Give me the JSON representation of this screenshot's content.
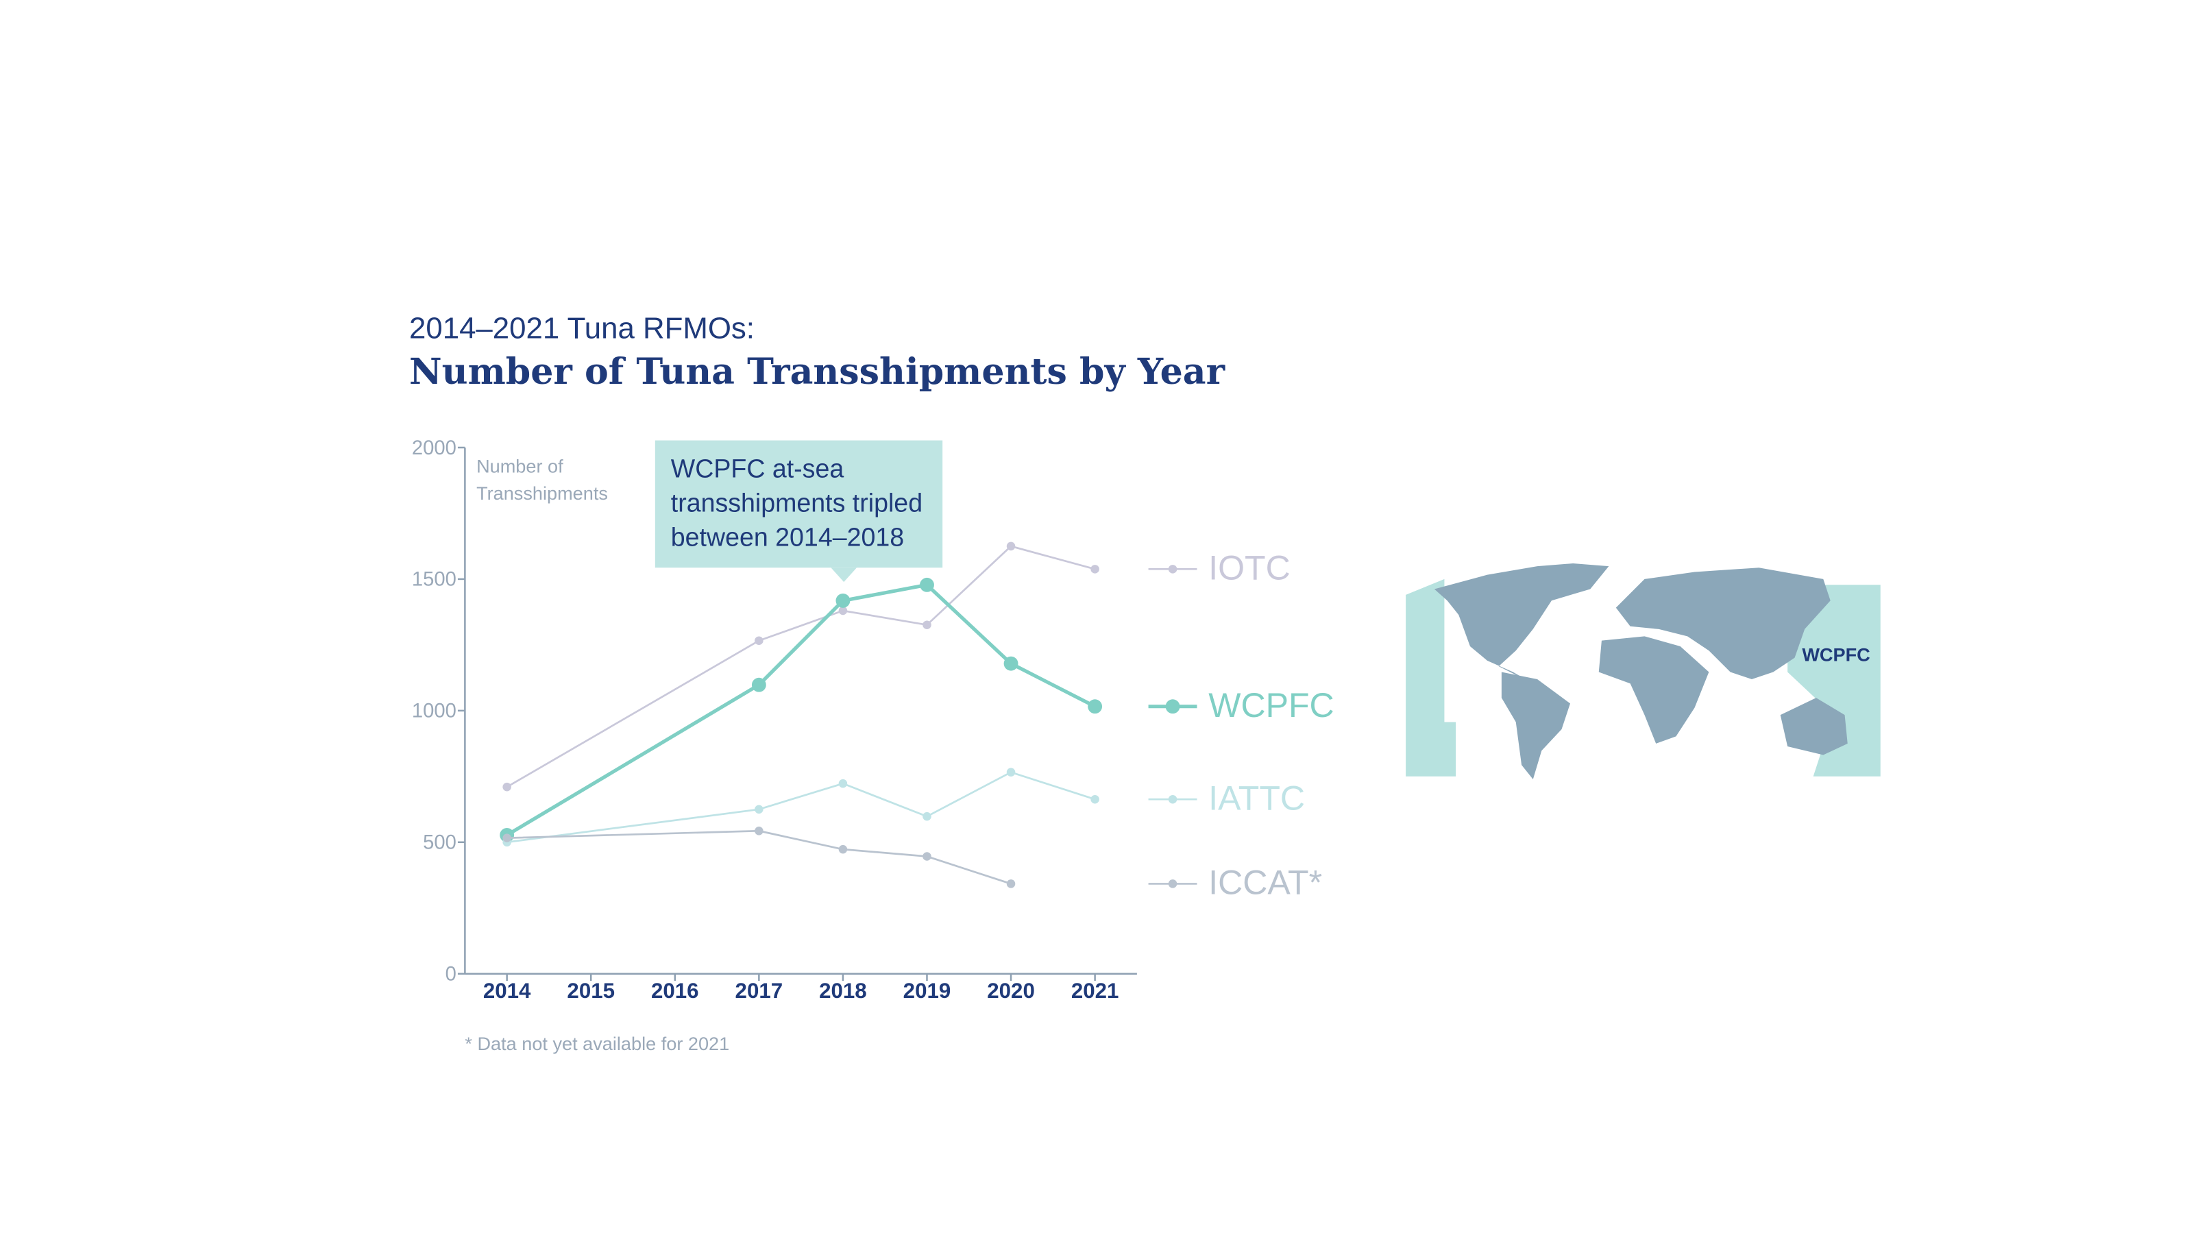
{
  "chart_data": {
    "type": "line",
    "subtitle": "2014–2021 Tuna RFMOs:",
    "title": "Number of Tuna Transshipments by Year",
    "y_label": [
      "Number of",
      "Transshipments"
    ],
    "annotation": [
      "WCPFC at-sea",
      "transshipments tripled",
      "between 2014–2018"
    ],
    "footnote": "* Data not yet available for 2021",
    "map_label": "WCPFC",
    "x": [
      2014,
      2017,
      2018,
      2019,
      2020,
      2021
    ],
    "xlim": [
      2013.5,
      2021.5
    ],
    "xticks": [
      2014,
      2015,
      2016,
      2017,
      2018,
      2019,
      2020,
      2021
    ],
    "ylim": [
      0,
      2000
    ],
    "yticks": [
      0,
      500,
      1000,
      1500,
      2000
    ],
    "grid": false,
    "series": [
      {
        "name": "IOTC",
        "color": "#c9c8da",
        "values": [
          710,
          1266,
          1380,
          1326,
          1625,
          1538
        ]
      },
      {
        "name": "WCPFC",
        "color": "#7fcfc4",
        "values": [
          527,
          1098,
          1418,
          1478,
          1179,
          1016
        ]
      },
      {
        "name": "IATTC",
        "color": "#bfe3e6",
        "values": [
          500,
          625,
          723,
          598,
          766,
          663
        ]
      },
      {
        "name": "ICCAT*",
        "color": "#b9c3cf",
        "values": [
          516,
          543,
          473,
          446,
          342,
          null
        ]
      }
    ]
  }
}
